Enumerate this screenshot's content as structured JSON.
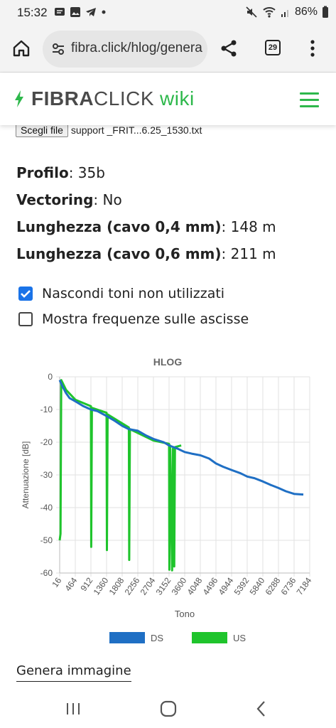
{
  "status_bar": {
    "time": "15:32",
    "battery": "86%"
  },
  "browser": {
    "url": "fibra.click/hlog/genera",
    "tab_count": "29"
  },
  "site": {
    "logo_bold": "FIBRA",
    "logo_light": "CLICK",
    "logo_wiki": "wiki",
    "accent": "#2db84b"
  },
  "file_input": {
    "button_label": "Scegli file",
    "file_name": "support _FRIT...6.25_1530.txt"
  },
  "info": {
    "profile_label": "Profilo",
    "profile_value": "35b",
    "vectoring_label": "Vectoring",
    "vectoring_value": "No",
    "length04_label": "Lunghezza (cavo 0,4 mm)",
    "length04_value": "148 m",
    "length06_label": "Lunghezza (cavo 0,6 mm)",
    "length06_value": "211 m"
  },
  "options": {
    "hide_unused": {
      "label": "Nascondi toni non utilizzati",
      "checked": true
    },
    "show_freq": {
      "label": "Mostra frequenze sulle ascisse",
      "checked": false
    }
  },
  "chart_data": {
    "type": "line",
    "title": "HLOG",
    "xlabel": "Tono",
    "ylabel": "Attenuazione [dB]",
    "xlim": [
      16,
      7184
    ],
    "ylim": [
      -60,
      0
    ],
    "x_ticks": [
      "16",
      "464",
      "912",
      "1360",
      "1808",
      "2256",
      "2704",
      "3152",
      "3600",
      "4048",
      "4496",
      "4944",
      "5392",
      "5840",
      "6288",
      "6736",
      "7184"
    ],
    "y_ticks": [
      "0",
      "-10",
      "-20",
      "-30",
      "-40",
      "-50",
      "-60"
    ],
    "grid": true,
    "legend_position": "bottom",
    "series": [
      {
        "name": "DS",
        "color": "#1f6fc4",
        "points": [
          [
            16,
            -1
          ],
          [
            100,
            -3
          ],
          [
            200,
            -5
          ],
          [
            300,
            -6.5
          ],
          [
            464,
            -7.5
          ],
          [
            700,
            -9
          ],
          [
            912,
            -10
          ],
          [
            1100,
            -10.5
          ],
          [
            1360,
            -12
          ],
          [
            1600,
            -13.5
          ],
          [
            1808,
            -15
          ],
          [
            2000,
            -16
          ],
          [
            2256,
            -16.5
          ],
          [
            2500,
            -18
          ],
          [
            2704,
            -19
          ],
          [
            3000,
            -20
          ],
          [
            3152,
            -21
          ],
          [
            3400,
            -22
          ],
          [
            3600,
            -23
          ],
          [
            3800,
            -23.5
          ],
          [
            4048,
            -24
          ],
          [
            4300,
            -25
          ],
          [
            4496,
            -26.5
          ],
          [
            4700,
            -27.5
          ],
          [
            4944,
            -28.5
          ],
          [
            5200,
            -29.5
          ],
          [
            5392,
            -30.5
          ],
          [
            5600,
            -31
          ],
          [
            5840,
            -32
          ],
          [
            6050,
            -33
          ],
          [
            6288,
            -34
          ],
          [
            6500,
            -35
          ],
          [
            6736,
            -35.8
          ],
          [
            7000,
            -36
          ]
        ]
      },
      {
        "name": "US",
        "color": "#1fc42c",
        "points": [
          [
            16,
            -50
          ],
          [
            40,
            -48
          ],
          [
            60,
            -1
          ],
          [
            200,
            -4
          ],
          [
            464,
            -7
          ],
          [
            912,
            -9
          ],
          [
            920,
            -52
          ],
          [
            940,
            -9.5
          ],
          [
            1360,
            -11
          ],
          [
            1370,
            -53
          ],
          [
            1390,
            -11.5
          ],
          [
            2000,
            -15.5
          ],
          [
            2010,
            -56
          ],
          [
            2030,
            -16
          ],
          [
            2704,
            -19.5
          ],
          [
            3152,
            -20.5
          ],
          [
            3160,
            -59
          ],
          [
            3180,
            -21
          ],
          [
            3240,
            -59.2
          ],
          [
            3260,
            -22
          ],
          [
            3300,
            -58
          ],
          [
            3320,
            -21.5
          ],
          [
            3500,
            -21
          ]
        ]
      }
    ]
  },
  "generate_link": "Genera immagine"
}
